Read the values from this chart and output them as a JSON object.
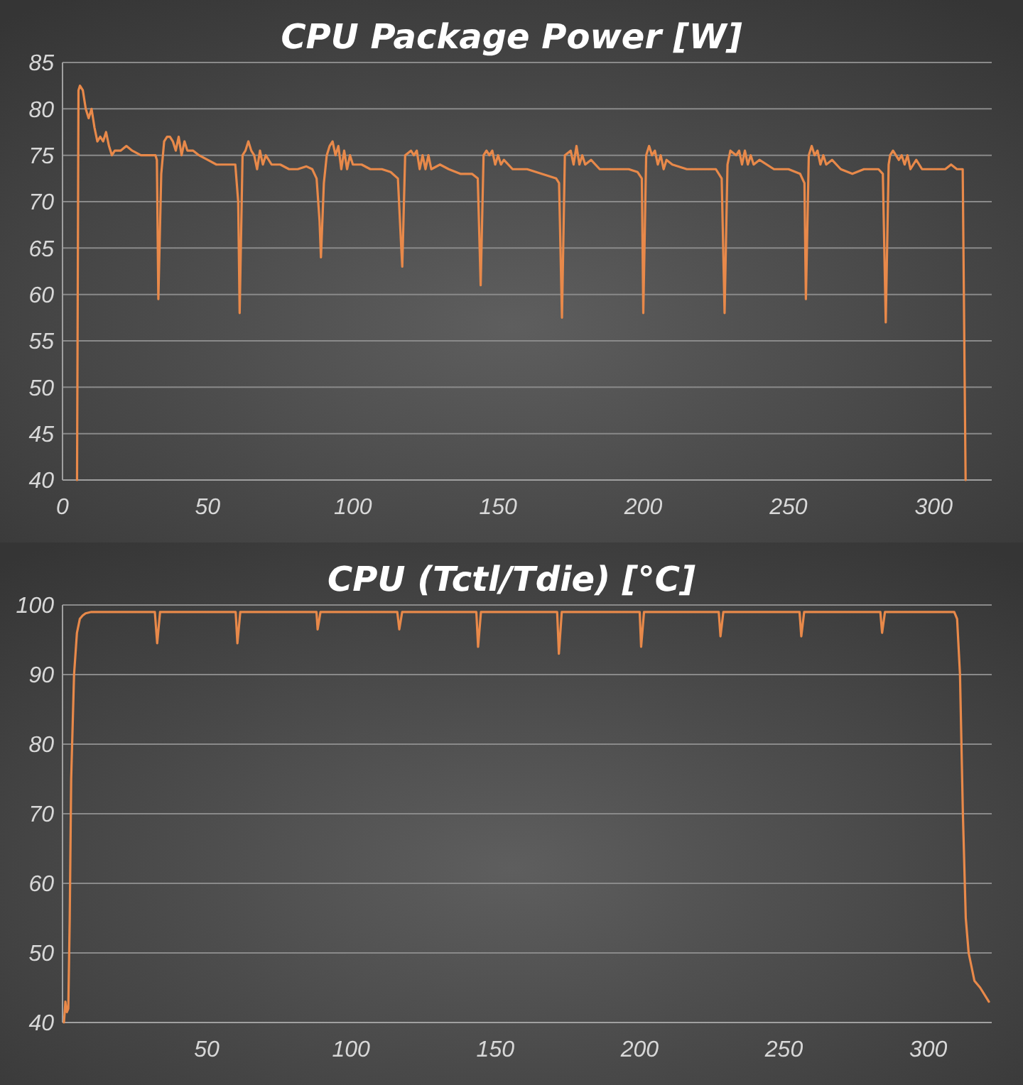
{
  "chart_data": [
    {
      "type": "line",
      "title": "CPU Package Power [W]",
      "xlim": [
        0,
        320
      ],
      "xticks": [
        0,
        50,
        100,
        150,
        200,
        250,
        300
      ],
      "ylim": [
        40,
        85
      ],
      "yticks": [
        40,
        45,
        50,
        55,
        60,
        65,
        70,
        75,
        80,
        85
      ],
      "grid": "y",
      "line_style": "solid",
      "marker": "none",
      "series": [
        {
          "color": "#e8894a",
          "x": [
            5,
            5.5,
            6,
            7,
            8,
            9,
            10,
            11,
            12,
            13,
            14,
            15,
            16,
            17,
            18,
            20,
            22,
            24,
            27,
            30,
            32,
            32.5,
            33,
            34,
            35,
            36,
            37,
            38,
            39,
            40,
            41,
            42,
            43,
            45,
            47,
            50,
            53,
            57,
            59.5,
            60.5,
            61,
            62,
            63,
            64,
            65,
            66,
            67,
            68,
            69,
            70,
            72,
            75,
            78,
            81,
            84,
            86,
            87.5,
            88.5,
            89,
            90,
            91,
            92,
            93,
            94,
            95,
            96,
            97,
            98,
            99,
            100,
            103,
            106,
            110,
            113,
            115.5,
            116.5,
            117,
            118,
            120,
            121,
            122,
            123,
            124,
            125,
            126,
            127,
            130,
            133,
            137,
            141,
            143,
            144,
            145,
            146,
            147,
            148,
            149,
            150,
            151,
            152,
            155,
            160,
            165,
            170,
            171,
            172,
            173,
            175,
            176,
            177,
            178,
            179,
            180,
            182,
            185,
            190,
            195,
            198,
            199.5,
            200,
            201,
            202,
            203,
            204,
            205,
            206,
            207,
            208,
            210,
            215,
            220,
            225,
            227,
            228,
            229,
            230,
            232,
            233,
            234,
            235,
            236,
            237,
            238,
            240,
            245,
            250,
            254,
            255.5,
            256,
            257,
            258,
            259,
            260,
            261,
            262,
            263,
            265,
            268,
            272,
            276,
            281,
            282.5,
            283.5,
            284.5,
            285,
            286,
            287,
            288,
            289,
            290,
            291,
            292,
            294,
            296,
            300,
            304,
            306,
            308,
            310,
            311
          ],
          "values": [
            40,
            82,
            82.5,
            82,
            80,
            79,
            80,
            78,
            76.5,
            77,
            76.5,
            77.5,
            76,
            75,
            75.5,
            75.5,
            76,
            75.5,
            75,
            75,
            75,
            74.5,
            59.5,
            73,
            76.5,
            77,
            77,
            76.5,
            75.5,
            77,
            75,
            76.5,
            75.5,
            75.5,
            75,
            74.5,
            74,
            74,
            74,
            70,
            58,
            75,
            75.5,
            76.5,
            75.5,
            75,
            73.5,
            75.5,
            74,
            75,
            74,
            74,
            73.5,
            73.5,
            73.8,
            73.5,
            72.5,
            68,
            64,
            72,
            75,
            76,
            76.5,
            75,
            76,
            73.5,
            75.5,
            73.5,
            75,
            74,
            74,
            73.5,
            73.5,
            73.2,
            72.5,
            66,
            63,
            75,
            75.5,
            75,
            75.5,
            73.5,
            75,
            73.5,
            75,
            73.5,
            74,
            73.5,
            73,
            73,
            72.5,
            61,
            75,
            75.5,
            75,
            75.5,
            74,
            75,
            74,
            74.5,
            73.5,
            73.5,
            73,
            72.5,
            72,
            57.5,
            75,
            75.5,
            74,
            76,
            74,
            75,
            74,
            74.5,
            73.5,
            73.5,
            73.5,
            73.2,
            72.5,
            58,
            75,
            76,
            75,
            75.5,
            74,
            75,
            73.5,
            74.5,
            74,
            73.5,
            73.5,
            73.5,
            72.5,
            58,
            74,
            75.5,
            75,
            75.5,
            74,
            75.5,
            74,
            75,
            74,
            74.5,
            73.5,
            73.5,
            73,
            72,
            59.5,
            75,
            76,
            75,
            75.5,
            74,
            75,
            74,
            74.5,
            73.5,
            73,
            73.5,
            73.5,
            73,
            57,
            74,
            75,
            75.5,
            75,
            74.5,
            75,
            74,
            75,
            73.5,
            74.5,
            73.5,
            73.5,
            73.5,
            74,
            73.5,
            73.5,
            40
          ]
        }
      ]
    },
    {
      "type": "line",
      "title": "CPU (Tctl/Tdie) [°C]",
      "xlim": [
        0,
        322
      ],
      "xticks": [
        50,
        100,
        150,
        200,
        250,
        300
      ],
      "ylim": [
        40,
        100
      ],
      "yticks": [
        40,
        50,
        60,
        70,
        80,
        90,
        100
      ],
      "grid": "y",
      "line_style": "solid",
      "marker": "none",
      "series": [
        {
          "color": "#e8894a",
          "x": [
            0.5,
            1,
            1.5,
            2,
            2.5,
            3,
            4,
            5,
            6,
            7,
            8,
            10,
            32,
            32.8,
            33.8,
            60,
            60.6,
            61.6,
            88,
            88.4,
            89.4,
            116,
            116.7,
            117.7,
            143.4,
            144,
            145,
            171.4,
            172,
            173,
            200,
            200.5,
            201.5,
            227.4,
            228,
            229,
            255.4,
            256,
            257,
            283.4,
            284,
            285,
            309,
            310,
            311,
            312,
            313,
            314,
            316,
            318,
            321
          ],
          "values": [
            40,
            43,
            41.5,
            42,
            55,
            75,
            90,
            96,
            98,
            98.5,
            98.8,
            99,
            99,
            94.5,
            99,
            99,
            94.5,
            99,
            99,
            96.5,
            99,
            99,
            96.5,
            99,
            99,
            94,
            99,
            99,
            93,
            99,
            99,
            94,
            99,
            99,
            95.5,
            99,
            99,
            95.5,
            99,
            99,
            96,
            99,
            99,
            98,
            90,
            70,
            55,
            50,
            46,
            45,
            43
          ]
        }
      ]
    }
  ]
}
